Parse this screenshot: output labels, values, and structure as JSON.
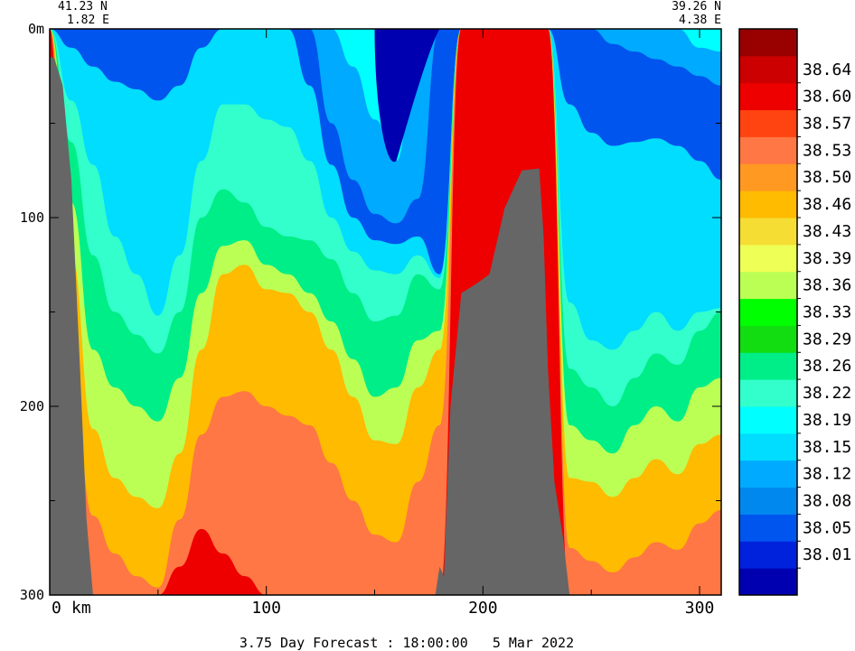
{
  "chart_data": {
    "type": "heatmap",
    "title": "3.75 Day Forecast : 18:00:00   5 Mar 2022",
    "start_point": {
      "lat": "41.23 N",
      "lon": "1.82 E"
    },
    "end_point": {
      "lat": "39.26 N",
      "lon": "4.38 E"
    },
    "x_axis": {
      "unit_label": "km",
      "ticks": [
        0,
        100,
        200,
        300
      ],
      "range": [
        0,
        310
      ]
    },
    "y_axis": {
      "unit_label": "m",
      "ticks": [
        0,
        100,
        200,
        300
      ],
      "range": [
        0,
        300
      ],
      "inverted": true
    },
    "levels": [
      38.01,
      38.05,
      38.08,
      38.12,
      38.15,
      38.19,
      38.22,
      38.26,
      38.29,
      38.33,
      38.36,
      38.39,
      38.43,
      38.46,
      38.5,
      38.53,
      38.57,
      38.6,
      38.64
    ],
    "level_labels": [
      "38.01",
      "38.05",
      "38.08",
      "38.12",
      "38.15",
      "38.19",
      "38.22",
      "38.26",
      "38.29",
      "38.33",
      "38.36",
      "38.39",
      "38.43",
      "38.46",
      "38.50",
      "38.53",
      "38.57",
      "38.60",
      "38.64"
    ],
    "colors": [
      "#0000b0",
      "#0022dd",
      "#0055ee",
      "#0088ee",
      "#00aaff",
      "#00ddff",
      "#00ffff",
      "#33ffcc",
      "#00ee88",
      "#11dd11",
      "#00ff00",
      "#bbff55",
      "#eeff55",
      "#f5dd33",
      "#ffbb00",
      "#ff9922",
      "#ff7744",
      "#ff4411",
      "#ee0000",
      "#cc0000",
      "#990000"
    ],
    "terrain_color": "#666666",
    "field": {
      "columns_x": [
        0,
        10,
        20,
        30,
        40,
        50,
        60,
        70,
        80,
        90,
        100,
        110,
        120,
        130,
        140,
        150,
        160,
        170,
        180,
        190,
        200,
        210,
        220,
        230,
        240,
        250,
        260,
        270,
        280,
        290,
        300,
        310
      ],
      "isolines_m": {
        "38.05": [
          0,
          0,
          0,
          0,
          0,
          0,
          0,
          0,
          0,
          0,
          0,
          0,
          0,
          0,
          20,
          48,
          70,
          0,
          0,
          0,
          0,
          0,
          0,
          0,
          0,
          0,
          0,
          0,
          0,
          0,
          10,
          12
        ],
        "38.12": [
          0,
          0,
          0,
          0,
          0,
          0,
          0,
          0,
          0,
          0,
          0,
          0,
          0,
          50,
          80,
          98,
          103,
          90,
          0,
          0,
          0,
          0,
          0,
          0,
          0,
          0,
          8,
          12,
          16,
          20,
          25,
          30
        ],
        "38.19": [
          0,
          10,
          20,
          28,
          32,
          38,
          30,
          10,
          0,
          0,
          0,
          0,
          30,
          72,
          100,
          112,
          114,
          110,
          130,
          0,
          0,
          0,
          0,
          0,
          40,
          55,
          62,
          60,
          58,
          62,
          70,
          80
        ],
        "38.26": [
          0,
          38,
          72,
          110,
          130,
          152,
          120,
          70,
          40,
          40,
          48,
          52,
          70,
          100,
          118,
          128,
          130,
          120,
          132,
          0,
          0,
          0,
          0,
          0,
          145,
          165,
          170,
          160,
          150,
          160,
          150,
          148
        ],
        "38.33": [
          0,
          60,
          120,
          150,
          162,
          172,
          150,
          100,
          85,
          92,
          105,
          110,
          112,
          122,
          140,
          155,
          152,
          130,
          138,
          0,
          0,
          0,
          0,
          0,
          180,
          190,
          200,
          185,
          172,
          178,
          160,
          150
        ],
        "38.43": [
          0,
          92,
          170,
          190,
          200,
          208,
          185,
          140,
          115,
          112,
          125,
          130,
          140,
          155,
          175,
          195,
          190,
          165,
          160,
          0,
          0,
          0,
          0,
          0,
          210,
          218,
          225,
          210,
          200,
          208,
          190,
          185
        ],
        "38.50": [
          0,
          120,
          212,
          238,
          248,
          254,
          225,
          170,
          130,
          125,
          138,
          140,
          150,
          170,
          195,
          218,
          220,
          190,
          170,
          0,
          0,
          0,
          0,
          0,
          238,
          240,
          248,
          238,
          228,
          236,
          220,
          215
        ],
        "38.57": [
          0,
          180,
          258,
          278,
          290,
          296,
          260,
          215,
          195,
          192,
          200,
          205,
          210,
          230,
          250,
          268,
          272,
          240,
          210,
          0,
          0,
          0,
          0,
          0,
          275,
          282,
          288,
          280,
          272,
          276,
          262,
          255
        ],
        "38.64": [
          0,
          300,
          300,
          300,
          300,
          300,
          285,
          265,
          278,
          290,
          300,
          300,
          300,
          300,
          300,
          300,
          300,
          300,
          300,
          0,
          0,
          0,
          0,
          0,
          300,
          300,
          300,
          300,
          300,
          300,
          300,
          300
        ]
      }
    }
  }
}
